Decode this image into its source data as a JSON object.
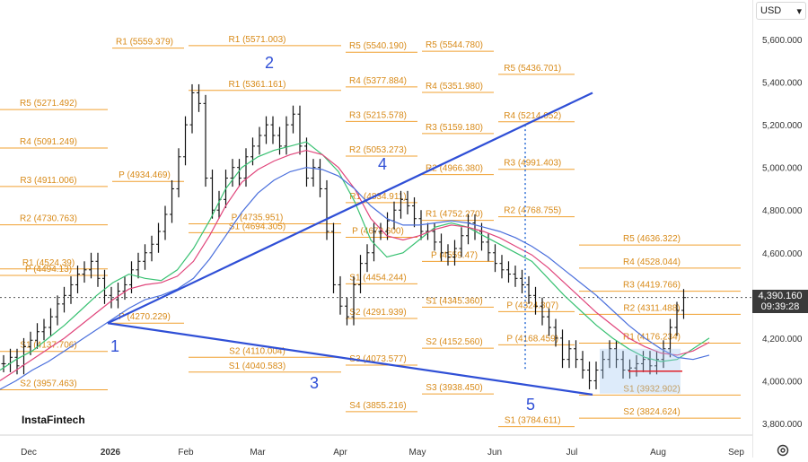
{
  "chart_data": {
    "type": "candlestick",
    "currency": "USD",
    "last_price": "4,390.160",
    "last_time": "09:39:28",
    "brand": "InstaFintech",
    "y_ticks": [
      "5,600.000",
      "5,400.000",
      "5,200.000",
      "5,000.000",
      "4,800.000",
      "4,600.000",
      "4,400.000",
      "4,200.000",
      "4,000.000",
      "3,800.000"
    ],
    "y_tick_values": [
      5600,
      5400,
      5200,
      5000,
      4800,
      4600,
      4400,
      4200,
      4000,
      3800
    ],
    "x_ticks": [
      "Dec",
      "2026",
      "Feb",
      "Mar",
      "Apr",
      "May",
      "Jun",
      "Jul",
      "Aug",
      "Sep"
    ],
    "y_range": [
      3705,
      5660
    ],
    "price_path": [
      [
        0,
        4080
      ],
      [
        1,
        4110
      ],
      [
        2,
        4070
      ],
      [
        3,
        4160
      ],
      [
        4,
        4190
      ],
      [
        5,
        4230
      ],
      [
        6,
        4250
      ],
      [
        7,
        4300
      ],
      [
        8,
        4360
      ],
      [
        9,
        4400
      ],
      [
        10,
        4450
      ],
      [
        11,
        4500
      ],
      [
        12,
        4520
      ],
      [
        13,
        4560
      ],
      [
        14,
        4480
      ],
      [
        15,
        4400
      ],
      [
        16,
        4380
      ],
      [
        17,
        4420
      ],
      [
        18,
        4450
      ],
      [
        19,
        4520
      ],
      [
        20,
        4560
      ],
      [
        21,
        4600
      ],
      [
        22,
        4640
      ],
      [
        23,
        4700
      ],
      [
        24,
        4780
      ],
      [
        25,
        4900
      ],
      [
        26,
        5050
      ],
      [
        27,
        5200
      ],
      [
        28,
        5350
      ],
      [
        29,
        5300
      ],
      [
        30,
        4950
      ],
      [
        31,
        4800
      ],
      [
        32,
        4850
      ],
      [
        33,
        4950
      ],
      [
        34,
        5000
      ],
      [
        35,
        4950
      ],
      [
        36,
        5050
      ],
      [
        37,
        5100
      ],
      [
        38,
        5150
      ],
      [
        39,
        5200
      ],
      [
        40,
        5150
      ],
      [
        41,
        5100
      ],
      [
        42,
        5200
      ],
      [
        43,
        5250
      ],
      [
        44,
        5100
      ],
      [
        45,
        4950
      ],
      [
        46,
        5000
      ],
      [
        47,
        4900
      ],
      [
        48,
        4700
      ],
      [
        49,
        4450
      ],
      [
        50,
        4350
      ],
      [
        51,
        4300
      ],
      [
        52,
        4450
      ],
      [
        53,
        4550
      ],
      [
        54,
        4600
      ],
      [
        55,
        4700
      ],
      [
        56,
        4700
      ],
      [
        57,
        4750
      ],
      [
        58,
        4800
      ],
      [
        59,
        4850
      ],
      [
        60,
        4820
      ],
      [
        61,
        4760
      ],
      [
        62,
        4700
      ],
      [
        63,
        4700
      ],
      [
        64,
        4650
      ],
      [
        65,
        4600
      ],
      [
        66,
        4580
      ],
      [
        67,
        4620
      ],
      [
        68,
        4680
      ],
      [
        69,
        4740
      ],
      [
        70,
        4700
      ],
      [
        71,
        4650
      ],
      [
        72,
        4600
      ],
      [
        73,
        4550
      ],
      [
        74,
        4520
      ],
      [
        75,
        4500
      ],
      [
        76,
        4480
      ],
      [
        77,
        4450
      ],
      [
        78,
        4400
      ],
      [
        79,
        4350
      ],
      [
        80,
        4300
      ],
      [
        81,
        4250
      ],
      [
        82,
        4200
      ],
      [
        83,
        4100
      ],
      [
        84,
        4150
      ],
      [
        85,
        4100
      ],
      [
        86,
        4050
      ],
      [
        87,
        4000
      ],
      [
        88,
        4050
      ],
      [
        89,
        4100
      ],
      [
        90,
        4150
      ],
      [
        91,
        4100
      ],
      [
        92,
        4050
      ],
      [
        93,
        4060
      ],
      [
        94,
        4080
      ],
      [
        95,
        4100
      ],
      [
        96,
        4070
      ],
      [
        97,
        4100
      ],
      [
        98,
        4150
      ],
      [
        99,
        4250
      ],
      [
        100,
        4330
      ],
      [
        101,
        4390
      ]
    ],
    "moving_averages": [
      {
        "color": "#38c172",
        "values": [
          4050,
          4100,
          4140,
          4200,
          4260,
          4330,
          4400,
          4460,
          4500,
          4480,
          4470,
          4520,
          4620,
          4750,
          4900,
          5000,
          5050,
          5080,
          5100,
          5120,
          5060,
          4980,
          4840,
          4660,
          4580,
          4600,
          4660,
          4720,
          4740,
          4720,
          4680,
          4640,
          4600,
          4560,
          4480,
          4400,
          4330,
          4260,
          4200,
          4150,
          4110,
          4090,
          4100,
          4150,
          4200
        ]
      },
      {
        "color": "#e0457b",
        "values": [
          4000,
          4050,
          4100,
          4150,
          4200,
          4260,
          4320,
          4380,
          4430,
          4450,
          4460,
          4490,
          4560,
          4680,
          4820,
          4930,
          4990,
          5030,
          5060,
          5080,
          5060,
          5000,
          4900,
          4760,
          4680,
          4660,
          4680,
          4710,
          4730,
          4720,
          4700,
          4670,
          4630,
          4590,
          4530,
          4460,
          4390,
          4320,
          4260,
          4200,
          4160,
          4130,
          4120,
          4140,
          4180
        ]
      },
      {
        "color": "#4a6fdc",
        "values": [
          3960,
          4000,
          4050,
          4090,
          4140,
          4190,
          4240,
          4290,
          4340,
          4380,
          4400,
          4430,
          4480,
          4570,
          4680,
          4790,
          4880,
          4940,
          4980,
          5000,
          4990,
          4960,
          4900,
          4820,
          4760,
          4730,
          4730,
          4740,
          4750,
          4740,
          4720,
          4700,
          4670,
          4630,
          4580,
          4520,
          4460,
          4400,
          4330,
          4260,
          4200,
          4150,
          4110,
          4100,
          4120
        ]
      }
    ],
    "pivot_levels": [
      {
        "label": "R1 (5559.379)",
        "value": 5559.379
      },
      {
        "label": "R1 (5571.003)",
        "value": 5571.003
      },
      {
        "label": "R5 (5271.492)",
        "value": 5271.492
      },
      {
        "label": "R4 (5091.249)",
        "value": 5091.249
      },
      {
        "label": "R3 (4911.006)",
        "value": 4911.006
      },
      {
        "label": "P (4934.469)",
        "value": 4934.469
      },
      {
        "label": "R2 (4730.763)",
        "value": 4730.763
      },
      {
        "label": "R1 (4524.39)",
        "value": 4524.39
      },
      {
        "label": "P (4494.13)",
        "value": 4494.13
      },
      {
        "label": "S1 (4694.305)",
        "value": 4694.305
      },
      {
        "label": "P (4270.229)",
        "value": 4270.229
      },
      {
        "label": "S1 (4137.706)",
        "value": 4137.706
      },
      {
        "label": "S2 (3957.463)",
        "value": 3957.463
      },
      {
        "label": "S2 (4110.004)",
        "value": 4110.004
      },
      {
        "label": "R1 (5361.161)",
        "value": 5361.161
      },
      {
        "label": "P (4735.951)",
        "value": 4735.951
      },
      {
        "label": "S1 (4040.583)",
        "value": 4040.583
      },
      {
        "label": "R5 (5540.190)",
        "value": 5540.19
      },
      {
        "label": "R4 (5377.884)",
        "value": 5377.884
      },
      {
        "label": "R3 (5215.578)",
        "value": 5215.578
      },
      {
        "label": "R2 (5053.273)",
        "value": 5053.273
      },
      {
        "label": "R1 (4834.911)",
        "value": 4834.911
      },
      {
        "label": "P (4672.600)",
        "value": 4672.6
      },
      {
        "label": "S1 (4454.244)",
        "value": 4454.244
      },
      {
        "label": "S2 (4291.939)",
        "value": 4291.939
      },
      {
        "label": "S3 (4073.577)",
        "value": 4073.577
      },
      {
        "label": "S4 (3855.216)",
        "value": 3855.216
      },
      {
        "label": "R5 (5544.780)",
        "value": 5544.78
      },
      {
        "label": "R4 (5351.980)",
        "value": 5351.98
      },
      {
        "label": "R3 (5159.180)",
        "value": 5159.18
      },
      {
        "label": "R2 (4966.380)",
        "value": 4966.38
      },
      {
        "label": "R1 (4752.270)",
        "value": 4752.27
      },
      {
        "label": "P (4559.47)",
        "value": 4559.47
      },
      {
        "label": "S1 (4345.360)",
        "value": 4345.36
      },
      {
        "label": "S2 (4152.560)",
        "value": 4152.56
      },
      {
        "label": "S3 (3938.450)",
        "value": 3938.45
      },
      {
        "label": "R5 (5436.701)",
        "value": 5436.701
      },
      {
        "label": "R4 (5214.052)",
        "value": 5214.052
      },
      {
        "label": "R3 (4991.403)",
        "value": 4991.403
      },
      {
        "label": "R2 (4768.755)",
        "value": 4768.755
      },
      {
        "label": "P (4324.307)",
        "value": 4324.307
      },
      {
        "label": "P (4168.459)",
        "value": 4168.459
      },
      {
        "label": "S1 (3784.611)",
        "value": 3784.611
      },
      {
        "label": "R5 (4636.322)",
        "value": 4636.322
      },
      {
        "label": "R4 (4528.044)",
        "value": 4528.044
      },
      {
        "label": "R3 (4419.766)",
        "value": 4419.766
      },
      {
        "label": "R2 (4311.488)",
        "value": 4311.488
      },
      {
        "label": "R1 (4176.234)",
        "value": 4176.234
      },
      {
        "label": "S1 (3932.902)",
        "value": 3932.902
      },
      {
        "label": "S2 (3824.624)",
        "value": 3824.624
      }
    ],
    "wave_labels": [
      "1",
      "2",
      "3",
      "4",
      "5"
    ],
    "trend_lines": [
      {
        "from": [
          120,
          4270
        ],
        "to": [
          660,
          5350
        ]
      },
      {
        "from": [
          120,
          4270
        ],
        "to": [
          660,
          3935
        ]
      }
    ]
  }
}
